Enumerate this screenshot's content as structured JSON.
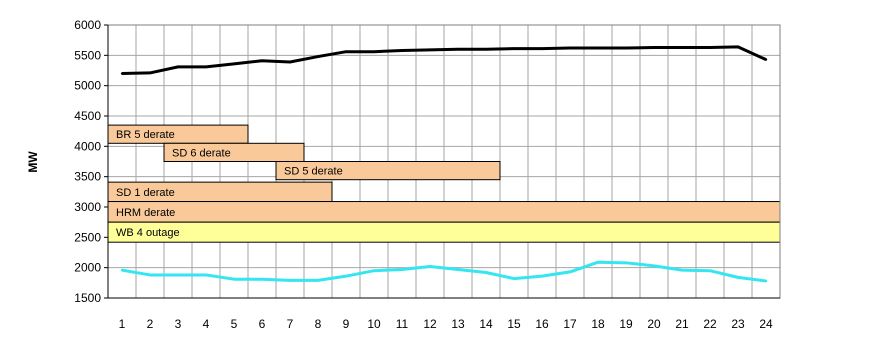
{
  "chart_data": {
    "type": "line",
    "title": "",
    "xlabel": "",
    "ylabel": "MW",
    "x": [
      1,
      2,
      3,
      4,
      5,
      6,
      7,
      8,
      9,
      10,
      11,
      12,
      13,
      14,
      15,
      16,
      17,
      18,
      19,
      20,
      21,
      22,
      23,
      24
    ],
    "ylim": [
      1500,
      6000
    ],
    "yticks": [
      1500,
      2000,
      2500,
      3000,
      3500,
      4000,
      4500,
      5000,
      5500,
      6000
    ],
    "grid": true,
    "legend": "none",
    "series": [
      {
        "color": "#000000",
        "values": [
          5200,
          5210,
          5310,
          5310,
          5360,
          5410,
          5390,
          5480,
          5560,
          5560,
          5580,
          5590,
          5600,
          5600,
          5610,
          5610,
          5620,
          5620,
          5620,
          5630,
          5630,
          5630,
          5640,
          5430
        ]
      },
      {
        "color": "#33e6f0",
        "values": [
          1960,
          1880,
          1880,
          1880,
          1810,
          1810,
          1790,
          1790,
          1860,
          1950,
          1970,
          2020,
          1970,
          1920,
          1820,
          1860,
          1930,
          2090,
          2080,
          2030,
          1960,
          1950,
          1840,
          1780
        ]
      }
    ],
    "annotations": [
      {
        "label": "BR 5 derate",
        "x_start": 0.5,
        "x_end": 5.5,
        "y_low": 4050,
        "y_high": 4350,
        "color": "#f9c99a"
      },
      {
        "label": "SD  6 derate",
        "x_start": 2.5,
        "x_end": 7.5,
        "y_low": 3750,
        "y_high": 4050,
        "color": "#f9c99a"
      },
      {
        "label": "SD 5 derate",
        "x_start": 6.5,
        "x_end": 14.5,
        "y_low": 3450,
        "y_high": 3750,
        "color": "#f9c99a"
      },
      {
        "label": "SD 1 derate",
        "x_start": 0.5,
        "x_end": 8.5,
        "y_low": 3090,
        "y_high": 3410,
        "color": "#f9c99a"
      },
      {
        "label": "HRM derate",
        "x_start": 0.5,
        "x_end": 24.5,
        "y_low": 2750,
        "y_high": 3090,
        "color": "#f9c99a"
      },
      {
        "label": "WB 4 outage",
        "x_start": 0.5,
        "x_end": 24.5,
        "y_low": 2420,
        "y_high": 2750,
        "color": "#ffff99"
      }
    ]
  }
}
